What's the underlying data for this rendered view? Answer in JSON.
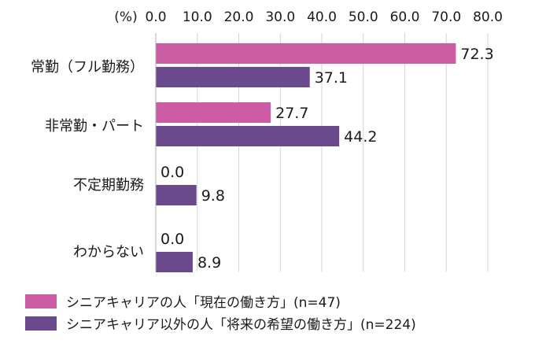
{
  "chart_data": {
    "type": "bar",
    "orientation": "horizontal",
    "unit_label": "(%)",
    "xlim": [
      0,
      80
    ],
    "ticks": [
      "0.0",
      "10.0",
      "20.0",
      "30.0",
      "40.0",
      "50.0",
      "60.0",
      "70.0",
      "80.0"
    ],
    "grid": true,
    "categories": [
      "常勤（フル勤務）",
      "非常勤・パート",
      "不定期勤務",
      "わからない"
    ],
    "series": [
      {
        "name": "シニアキャリアの人「現在の働き方」(n=47)",
        "color": "#cc5ca4",
        "values": [
          72.3,
          27.7,
          0.0,
          0.0
        ],
        "labels": [
          "72.3",
          "27.7",
          "0.0",
          "0.0"
        ]
      },
      {
        "name": "シニアキャリア以外の人「将来の希望の働き方」(n=224)",
        "color": "#6a4a8c",
        "values": [
          37.1,
          44.2,
          9.8,
          8.9
        ],
        "labels": [
          "37.1",
          "44.2",
          "9.8",
          "8.9"
        ]
      }
    ],
    "legend_position": "bottom-left"
  }
}
